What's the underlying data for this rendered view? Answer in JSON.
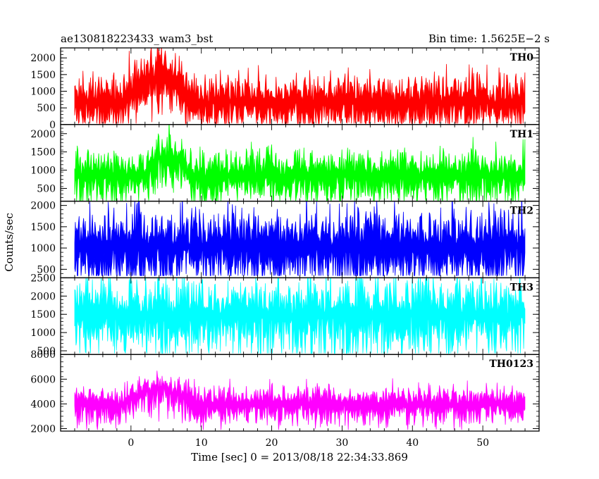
{
  "header": {
    "title": "ae130818223433_wam3_bst",
    "bin_time": "Bin time: 1.5625E−2 s"
  },
  "chart_data": {
    "type": "line",
    "xlabel": "Time [sec] 0 = 2013/08/18 22:34:33.869",
    "ylabel": "Counts/sec",
    "xlim": [
      -10,
      58
    ],
    "xticks": [
      0,
      10,
      20,
      30,
      40,
      50
    ],
    "grid": false,
    "panels": [
      {
        "name": "TH0",
        "color": "#ff0000",
        "ylim": [
          0,
          2300
        ],
        "yticks": [
          0,
          500,
          1000,
          1500,
          2000
        ],
        "x_range": [
          -8,
          56
        ],
        "base": 650,
        "noise": 450,
        "min_floor": 30,
        "burst": [
          {
            "start": -1,
            "end": 9,
            "peak": 1000
          }
        ]
      },
      {
        "name": "TH1",
        "color": "#00ff00",
        "ylim": [
          150,
          2250
        ],
        "yticks": [
          500,
          1000,
          1500,
          2000
        ],
        "x_range": [
          -8,
          56
        ],
        "base": 830,
        "noise": 380,
        "min_floor": 150,
        "burst": [
          {
            "start": 2,
            "end": 8.5,
            "peak": 700
          }
        ]
      },
      {
        "name": "TH2",
        "color": "#0000ff",
        "ylim": [
          300,
          2100
        ],
        "yticks": [
          500,
          1000,
          1500,
          2000
        ],
        "x_range": [
          -8,
          56
        ],
        "base": 1000,
        "noise": 500,
        "min_floor": 350,
        "burst": []
      },
      {
        "name": "TH3",
        "color": "#00ffff",
        "ylim": [
          400,
          2500
        ],
        "yticks": [
          500,
          1000,
          1500,
          2000,
          2500
        ],
        "x_range": [
          -8,
          56
        ],
        "base": 1450,
        "noise": 560,
        "min_floor": 430,
        "burst": []
      },
      {
        "name": "TH0123",
        "color": "#ff00ff",
        "ylim": [
          1800,
          8000
        ],
        "yticks": [
          2000,
          4000,
          6000,
          8000
        ],
        "x_range": [
          -8,
          56
        ],
        "base": 3900,
        "noise": 800,
        "min_floor": 1900,
        "burst": [
          {
            "start": -1,
            "end": 9,
            "peak": 1700
          }
        ]
      }
    ]
  }
}
